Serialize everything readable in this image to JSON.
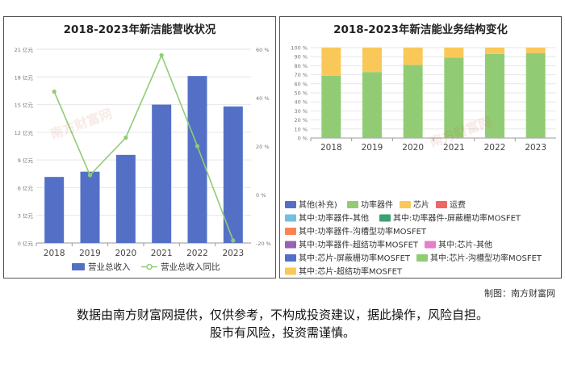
{
  "credit": "制图：南方财富网",
  "disclaimer": [
    "数据由南方财富网提供，仅供参考，不构成投资建议，据此操作，风险自担。",
    "股市有风险，投资需谨慎。"
  ],
  "watermark": "南方财富网",
  "chart_data": [
    {
      "type": "bar",
      "title": "2018-2023年新洁能营收状况",
      "categories": [
        "2018",
        "2019",
        "2020",
        "2021",
        "2022",
        "2023"
      ],
      "y_left": {
        "ticks": [
          "0 亿元",
          "3 亿元",
          "6 亿元",
          "9 亿元",
          "12 亿元",
          "15 亿元",
          "18 亿元",
          "21 亿元"
        ],
        "ylim": [
          0,
          21
        ]
      },
      "y_right": {
        "ticks": [
          "-20 %",
          "0 %",
          "20 %",
          "40 %",
          "60 %"
        ],
        "ylim": [
          -20,
          60
        ]
      },
      "series": [
        {
          "name": "营业总收入",
          "kind": "bar",
          "axis": "left",
          "color": "#5470c6",
          "values": [
            7.16,
            7.73,
            9.55,
            15.0,
            18.1,
            14.8
          ]
        },
        {
          "name": "营业总收入同比",
          "kind": "line",
          "axis": "right",
          "color": "#91cc75",
          "values": [
            42.5,
            8.0,
            23.5,
            57.5,
            20.0,
            -19.0
          ]
        }
      ],
      "grid": true,
      "legend": "bottom"
    },
    {
      "type": "bar",
      "stacked": true,
      "title": "2018-2023年新洁能业务结构变化",
      "categories": [
        "2018",
        "2019",
        "2020",
        "2021",
        "2022",
        "2023"
      ],
      "y_ticks": [
        "0 %",
        "10 %",
        "20 %",
        "30 %",
        "40 %",
        "50 %",
        "60 %",
        "70 %",
        "80 %",
        "90 %",
        "100 %"
      ],
      "ylim": [
        0,
        100
      ],
      "series": [
        {
          "name": "功率器件",
          "color": "#91cc75",
          "values": [
            69,
            73,
            81,
            89,
            93,
            94
          ]
        },
        {
          "name": "芯片",
          "color": "#fac858",
          "values": [
            31,
            27,
            19,
            11,
            7,
            6
          ]
        }
      ],
      "legend_items": [
        {
          "name": "其他(补充)",
          "color": "#5470c6"
        },
        {
          "name": "功率器件",
          "color": "#91cc75"
        },
        {
          "name": "芯片",
          "color": "#fac858"
        },
        {
          "name": "运费",
          "color": "#ee6666"
        },
        {
          "name": "其中:功率器件-其他",
          "color": "#73c0de"
        },
        {
          "name": "其中:功率器件-屏蔽栅功率MOSFET",
          "color": "#3ba272"
        },
        {
          "name": "其中:功率器件-沟槽型功率MOSFET",
          "color": "#fc8452"
        },
        {
          "name": "其中:功率器件-超结功率MOSFET",
          "color": "#9a60b4"
        },
        {
          "name": "其中:芯片-其他",
          "color": "#ea7ccc"
        },
        {
          "name": "其中:芯片-屏蔽栅功率MOSFET",
          "color": "#5470c6"
        },
        {
          "name": "其中:芯片-沟槽型功率MOSFET",
          "color": "#91cc75"
        },
        {
          "name": "其中:芯片-超结功率MOSFET",
          "color": "#fac858"
        }
      ],
      "grid": true,
      "legend": "bottom"
    }
  ]
}
